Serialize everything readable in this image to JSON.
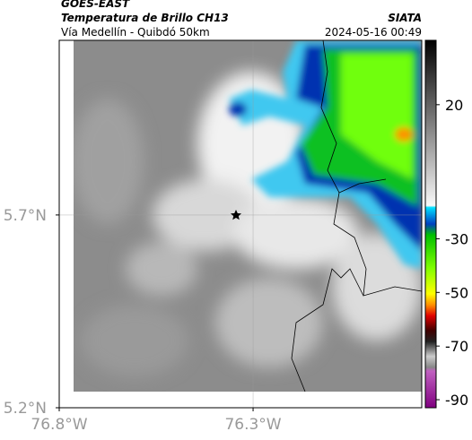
{
  "header": {
    "title": "GOES-EAST",
    "subtitle": "Temperatura de Brillo CH13",
    "route": "Vía Medellín - Quibdó 50km",
    "source": "SIATA",
    "timestamp": "2024-05-16 00:49"
  },
  "map": {
    "xlim": [
      -76.8,
      -75.865
    ],
    "ylim": [
      5.2,
      6.153
    ],
    "xticks": [
      {
        "value": -76.8,
        "label": "76.8°W"
      },
      {
        "value": -76.3,
        "label": "76.3°W"
      }
    ],
    "yticks": [
      {
        "value": 5.2,
        "label": "5.2°N"
      },
      {
        "value": 5.7,
        "label": "5.7°N"
      }
    ],
    "grid": true
  },
  "colorbar": {
    "lim": [
      -93,
      44
    ],
    "ticks": [
      20,
      -30,
      -50,
      -70,
      -90
    ]
  }
}
